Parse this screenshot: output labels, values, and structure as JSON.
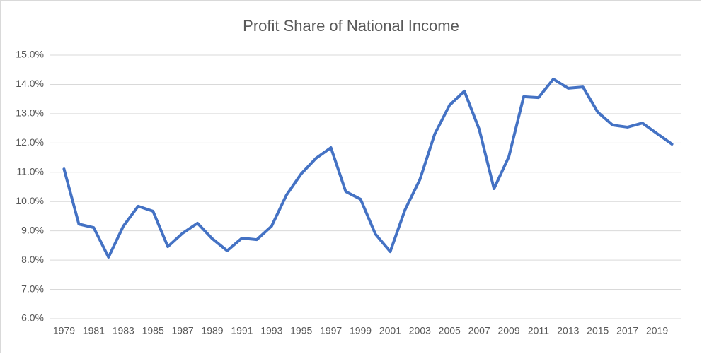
{
  "chart_data": {
    "type": "line",
    "title": "Profit Share of National Income",
    "categories": [
      "1979",
      null,
      "1981",
      null,
      "1983",
      null,
      "1985",
      null,
      "1987",
      null,
      "1989",
      null,
      "1991",
      null,
      "1993",
      null,
      "1995",
      null,
      "1997",
      null,
      "1999",
      null,
      "2001",
      null,
      "2003",
      null,
      "2005",
      null,
      "2007",
      null,
      "2009",
      null,
      "2011",
      null,
      "2013",
      null,
      "2015",
      null,
      "2017",
      null,
      "2019",
      null
    ],
    "values": [
      11.11,
      9.23,
      9.11,
      8.1,
      9.16,
      9.84,
      9.67,
      8.46,
      8.92,
      9.26,
      8.73,
      8.32,
      8.75,
      8.7,
      9.16,
      10.22,
      10.95,
      11.48,
      11.84,
      10.34,
      10.08,
      8.89,
      8.29,
      9.72,
      10.75,
      12.3,
      13.29,
      13.77,
      12.47,
      10.44,
      11.53,
      13.58,
      13.55,
      14.18,
      13.87,
      13.91,
      13.05,
      12.61,
      12.54,
      12.68,
      12.32,
      11.96
    ],
    "color": "#4472c4",
    "ylim": [
      6,
      15
    ],
    "yticks": [
      {
        "value": 6,
        "label": "6.0%"
      },
      {
        "value": 7,
        "label": "7.0%"
      },
      {
        "value": 8,
        "label": "8.0%"
      },
      {
        "value": 9,
        "label": "9.0%"
      },
      {
        "value": 10,
        "label": "10.0%"
      },
      {
        "value": 11,
        "label": "11.0%"
      },
      {
        "value": 12,
        "label": "12.0%"
      },
      {
        "value": 13,
        "label": "13.0%"
      },
      {
        "value": 14,
        "label": "14.0%"
      },
      {
        "value": 15,
        "label": "15.0%"
      }
    ],
    "grid": true
  }
}
